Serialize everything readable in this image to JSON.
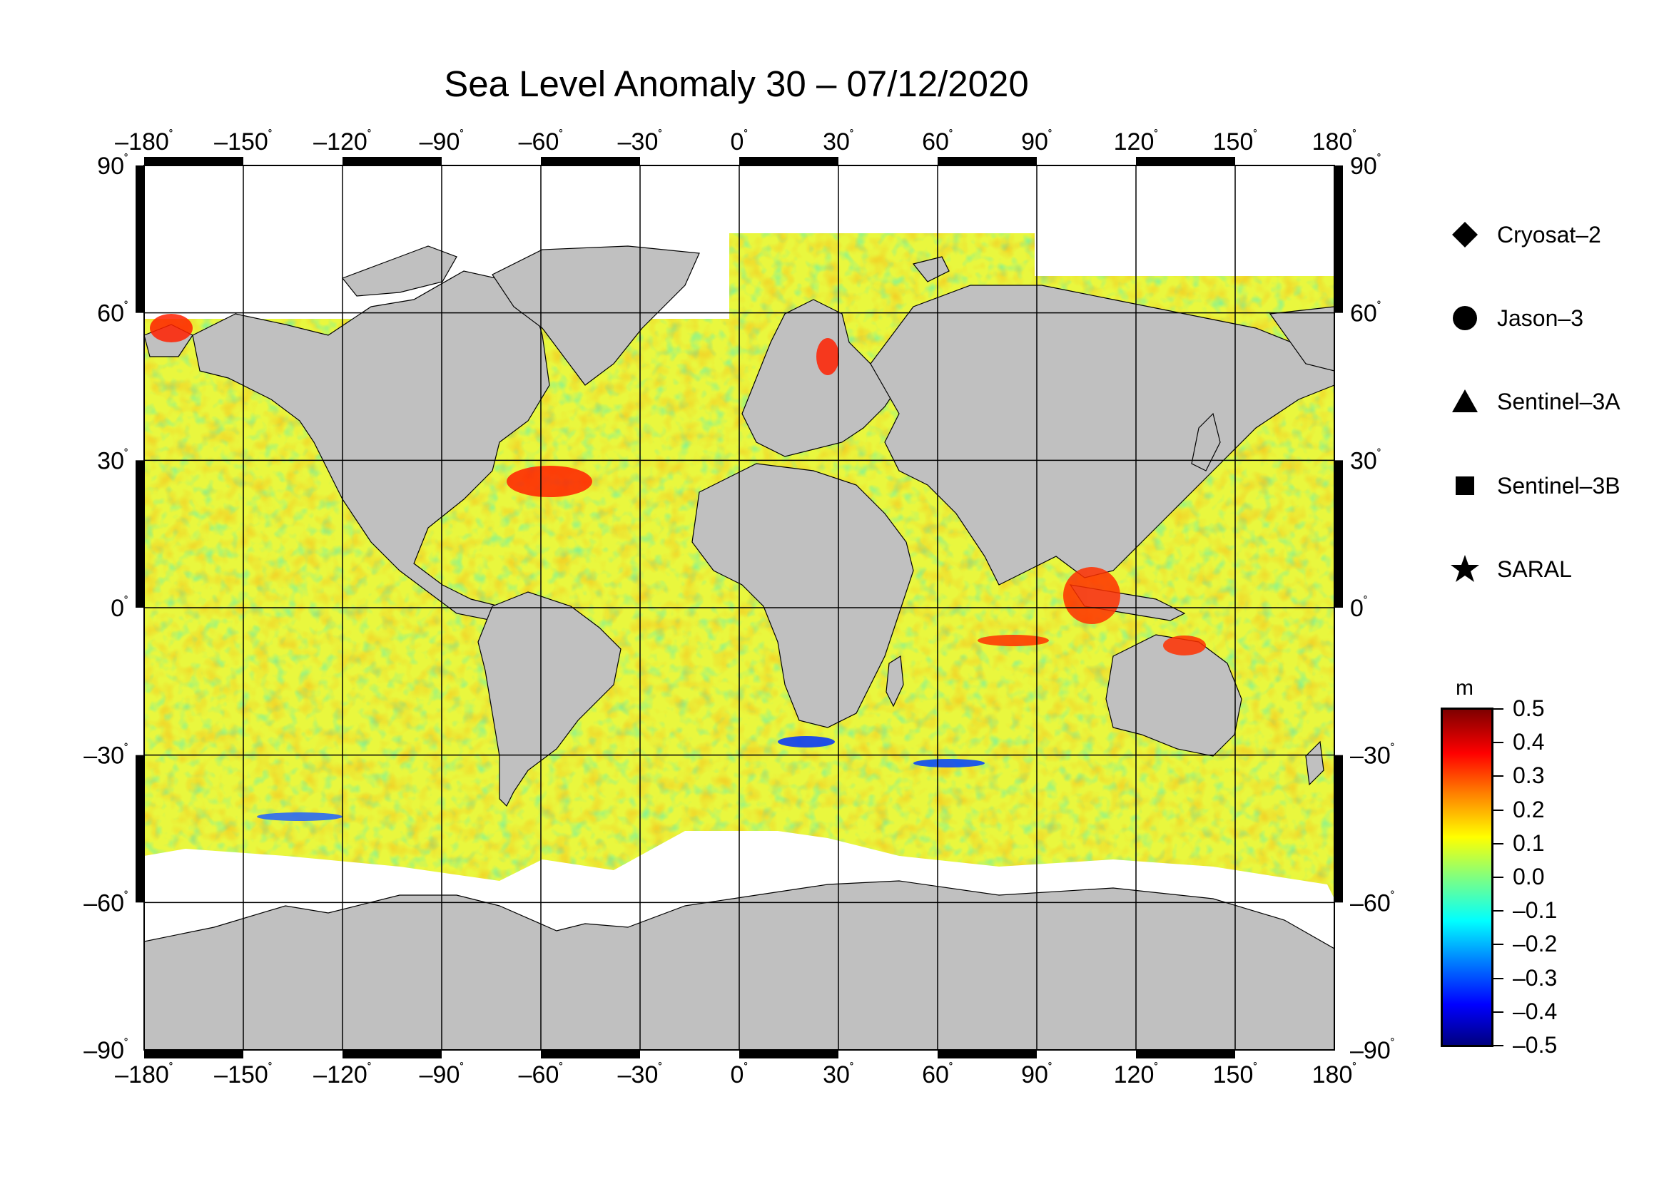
{
  "title": "Sea Level Anomaly 30 – 07/12/2020",
  "lon_labels": [
    "–180",
    "–150",
    "–120",
    "–90",
    "–60",
    "–30",
    "0",
    "30",
    "60",
    "90",
    "120",
    "150",
    "180"
  ],
  "lat_labels": [
    "90",
    "60",
    "30",
    "0",
    "–30",
    "–60",
    "–90"
  ],
  "lon_values": [
    -180,
    -150,
    -120,
    -90,
    -60,
    -30,
    0,
    30,
    60,
    90,
    120,
    150,
    180
  ],
  "lat_values": [
    90,
    60,
    30,
    0,
    -30,
    -60,
    -90
  ],
  "degree_symbol": "˚",
  "legend": [
    {
      "label": "Cryosat–2",
      "symbol": "diamond"
    },
    {
      "label": "Jason–3",
      "symbol": "circle"
    },
    {
      "label": "Sentinel–3A",
      "symbol": "triangle"
    },
    {
      "label": "Sentinel–3B",
      "symbol": "square"
    },
    {
      "label": "SARAL",
      "symbol": "star"
    }
  ],
  "colorbar": {
    "unit": "m",
    "labels": [
      "0.5",
      "0.4",
      "0.3",
      "0.2",
      "0.1",
      "0.0",
      "–0.1",
      "–0.2",
      "–0.3",
      "–0.4",
      "–0.5"
    ],
    "min": -0.5,
    "max": 0.5,
    "colors": [
      "#00007f",
      "#0000ff",
      "#0080ff",
      "#00ffff",
      "#80ff80",
      "#ffff00",
      "#ff8000",
      "#ff0000",
      "#7f0000"
    ]
  },
  "map_colors": {
    "land": "#c0c0c0",
    "ice_gap": "#ffffff",
    "ocean_mid": "#c8f050"
  },
  "icons": {
    "projection": "equirectangular world map"
  }
}
